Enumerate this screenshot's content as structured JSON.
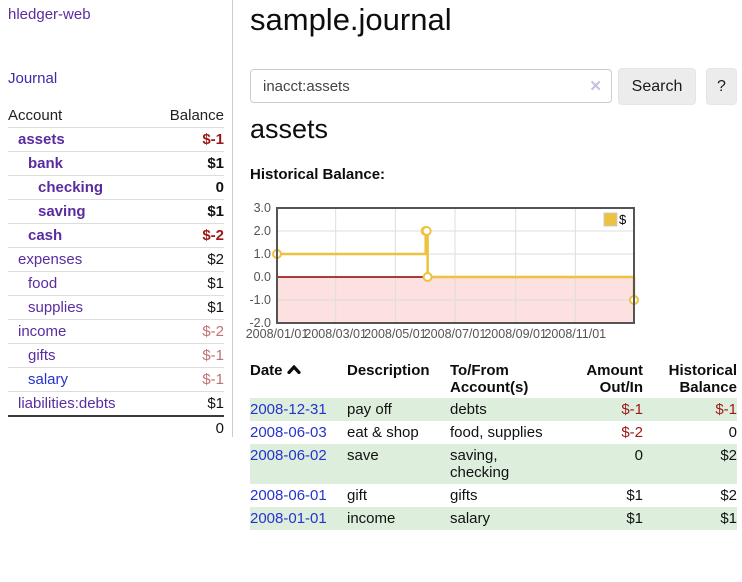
{
  "app": {
    "brand": "hledger-web",
    "nav": {
      "journal_label": "Journal"
    }
  },
  "sidebar": {
    "table": {
      "account_header": "Account",
      "balance_header": "Balance",
      "rows": [
        {
          "account": "assets",
          "balance": "$-1"
        },
        {
          "account": "bank",
          "balance": "$1"
        },
        {
          "account": "checking",
          "balance": "0"
        },
        {
          "account": "saving",
          "balance": "$1"
        },
        {
          "account": "cash",
          "balance": "$-2"
        },
        {
          "account": "expenses",
          "balance": "$2"
        },
        {
          "account": "food",
          "balance": "$1"
        },
        {
          "account": "supplies",
          "balance": "$1"
        },
        {
          "account": "income",
          "balance": "$-2"
        },
        {
          "account": "gifts",
          "balance": "$-1"
        },
        {
          "account": "salary",
          "balance": "$-1"
        },
        {
          "account": "liabilities:debts",
          "balance": "$1"
        }
      ],
      "total": "0"
    }
  },
  "main": {
    "title": "sample.journal",
    "search": {
      "value": "inacct:assets",
      "clear_icon": "✕",
      "search_button": "Search",
      "help_button": "?"
    },
    "account_heading": "assets",
    "chart_heading": "Historical Balance:"
  },
  "chart_data": {
    "type": "line",
    "title": "Historical Balance:",
    "series": [
      {
        "name": "$",
        "color": "#edc240",
        "steps": true,
        "points": [
          [
            "2008-01-01",
            1
          ],
          [
            "2008-06-01",
            2
          ],
          [
            "2008-06-02",
            2
          ],
          [
            "2008-06-03",
            0
          ],
          [
            "2008-12-31",
            -1
          ]
        ]
      }
    ],
    "x_range": [
      "2008-01-01",
      "2008-12-31"
    ],
    "ylim": [
      -2,
      3
    ],
    "y_ticks": [
      "3.0",
      "2.0",
      "1.0",
      "0.0",
      "-1.0",
      "-2.0"
    ],
    "x_ticks": [
      "2008/01/01",
      "2008/03/01",
      "2008/05/01",
      "2008/07/01",
      "2008/09/01",
      "2008/11/01"
    ],
    "legend_position": "top-right",
    "grid": true,
    "zero_line_color": "#8b0000",
    "negative_region_color": "rgba(235,0,0,0.12)"
  },
  "register": {
    "headers": {
      "date": "Date",
      "description": "Description",
      "accounts": "To/From Account(s)",
      "amount": "Amount Out/In",
      "balance": "Historical Balance"
    },
    "rows": [
      {
        "date": "2008-12-31",
        "description": "pay off",
        "accounts": "debts",
        "amount": "$-1",
        "balance": "$-1"
      },
      {
        "date": "2008-06-03",
        "description": "eat & shop",
        "accounts": "food, supplies",
        "amount": "$-2",
        "balance": "0"
      },
      {
        "date": "2008-06-02",
        "description": "save",
        "accounts": "saving, checking",
        "amount": "0",
        "balance": "$2"
      },
      {
        "date": "2008-06-01",
        "description": "gift",
        "accounts": "gifts",
        "amount": "$1",
        "balance": "$2"
      },
      {
        "date": "2008-01-01",
        "description": "income",
        "accounts": "salary",
        "amount": "$1",
        "balance": "$1"
      }
    ]
  }
}
